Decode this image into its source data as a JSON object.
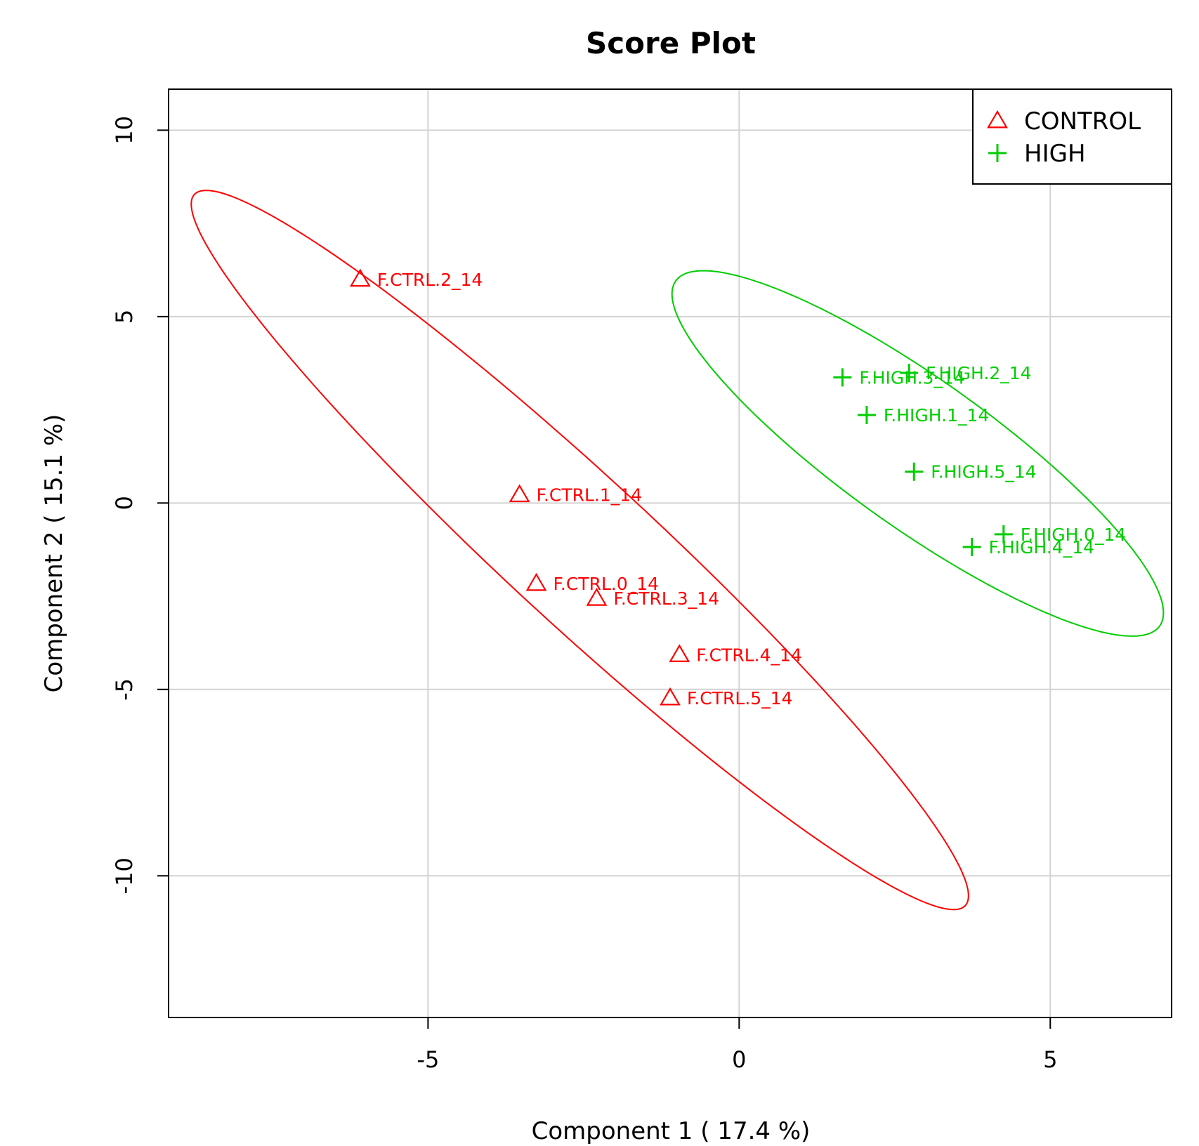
{
  "chart_data": {
    "type": "scatter",
    "title": "Score Plot",
    "xlabel": "Component 1 ( 17.4 %)",
    "ylabel": "Component 2 ( 15.1 %)",
    "xlim": [
      -9.17,
      6.95
    ],
    "ylim": [
      -13.8,
      11.1
    ],
    "xticks": [
      -5,
      0,
      5
    ],
    "yticks": [
      -10,
      -5,
      0,
      5,
      10
    ],
    "grid": true,
    "legend_position": "top-right",
    "series": [
      {
        "name": "CONTROL",
        "color": "#ff0000",
        "marker": "triangle",
        "points": [
          {
            "label": "F.CTRL.2_14",
            "x": -6.09,
            "y": 6.0
          },
          {
            "label": "F.CTRL.1_14",
            "x": -3.53,
            "y": 0.22
          },
          {
            "label": "F.CTRL.0_14",
            "x": -3.26,
            "y": -2.16
          },
          {
            "label": "F.CTRL.3_14",
            "x": -2.29,
            "y": -2.56
          },
          {
            "label": "F.CTRL.4_14",
            "x": -0.96,
            "y": -4.07
          },
          {
            "label": "F.CTRL.5_14",
            "x": -1.11,
            "y": -5.23
          }
        ],
        "ellipse": {
          "cx": -2.56,
          "cy": -1.26,
          "angle_deg": -57.5,
          "semi_major": 11.4,
          "semi_minor": 1.45
        }
      },
      {
        "name": "HIGH",
        "color": "#00cd00",
        "marker": "plus",
        "points": [
          {
            "label": "F.HIGH.2_14",
            "x": 2.73,
            "y": 3.49
          },
          {
            "label": "F.HIGH.3_14",
            "x": 1.66,
            "y": 3.37
          },
          {
            "label": "F.HIGH.1_14",
            "x": 2.05,
            "y": 2.36
          },
          {
            "label": "F.HIGH.5_14",
            "x": 2.81,
            "y": 0.84
          },
          {
            "label": "F.HIGH.0_14",
            "x": 4.25,
            "y": -0.84
          },
          {
            "label": "F.HIGH.4_14",
            "x": 3.74,
            "y": -1.18
          }
        ],
        "ellipse": {
          "cx": 2.87,
          "cy": 1.33,
          "angle_deg": -52,
          "semi_major": 6.1,
          "semi_minor": 1.55
        }
      }
    ]
  }
}
